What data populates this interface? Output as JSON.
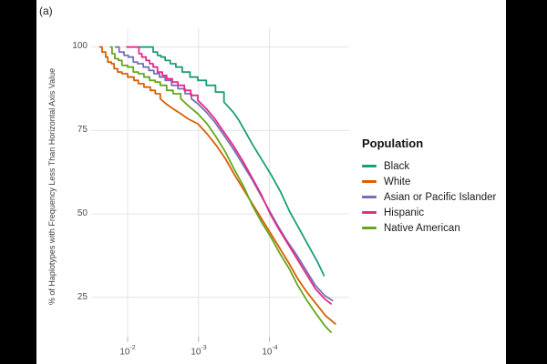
{
  "figure_label": "(a)",
  "colors": {
    "background": "#ffffff",
    "letterbox": "#000000",
    "gridline": "#e4e4e4",
    "tick_mark": "#b5b5b5",
    "axis_text": "#4d4d4d"
  },
  "chart_data": {
    "type": "line",
    "title": "",
    "xlabel": "",
    "ylabel": "% of Haplotypes with Frequency Less Than Horizontal Axis Value",
    "x_scale": "log10 (reversed, frequency decreasing to the right)",
    "x_ticks": [
      {
        "base": "10",
        "exp": "-2",
        "log10": -2
      },
      {
        "base": "10",
        "exp": "-3",
        "log10": -3
      },
      {
        "base": "10",
        "exp": "-4",
        "log10": -4
      }
    ],
    "y_ticks": [
      "100",
      "75",
      "50",
      "25"
    ],
    "y_tick_values": [
      100,
      75,
      50,
      25
    ],
    "xlim_log10": [
      -1.49,
      -5.13
    ],
    "ylim": [
      13,
      105
    ],
    "grid": "major only",
    "legend_position": "right",
    "legend_title": "Population",
    "series": [
      {
        "name": "Black",
        "color": "#1B9E77",
        "points": [
          [
            -2.17,
            100
          ],
          [
            -2.33,
            100
          ],
          [
            -2.36,
            98.5
          ],
          [
            -2.42,
            97.5
          ],
          [
            -2.47,
            97
          ],
          [
            -2.53,
            96
          ],
          [
            -2.6,
            95
          ],
          [
            -2.68,
            94
          ],
          [
            -2.77,
            92.5
          ],
          [
            -2.88,
            91
          ],
          [
            -2.99,
            90
          ],
          [
            -3.11,
            88.5
          ],
          [
            -3.24,
            86.5
          ],
          [
            -3.36,
            83.5
          ],
          [
            -3.49,
            80.5
          ],
          [
            -3.57,
            78
          ],
          [
            -3.65,
            75
          ],
          [
            -3.77,
            70.5
          ],
          [
            -3.9,
            66
          ],
          [
            -4.03,
            61.5
          ],
          [
            -4.16,
            56.5
          ],
          [
            -4.29,
            50.5
          ],
          [
            -4.42,
            45.5
          ],
          [
            -4.55,
            40.5
          ],
          [
            -4.68,
            35.5
          ],
          [
            -4.77,
            31.5
          ]
        ]
      },
      {
        "name": "White",
        "color": "#D95F02",
        "points": [
          [
            -1.61,
            100
          ],
          [
            -1.64,
            98.5
          ],
          [
            -1.69,
            97
          ],
          [
            -1.72,
            95.5
          ],
          [
            -1.77,
            95
          ],
          [
            -1.81,
            93.5
          ],
          [
            -1.86,
            92.5
          ],
          [
            -1.92,
            92
          ],
          [
            -2.0,
            91
          ],
          [
            -2.09,
            90
          ],
          [
            -2.15,
            89
          ],
          [
            -2.23,
            88
          ],
          [
            -2.32,
            87
          ],
          [
            -2.39,
            86
          ],
          [
            -2.46,
            84.5
          ],
          [
            -2.54,
            83
          ],
          [
            -2.64,
            81.5
          ],
          [
            -2.75,
            80
          ],
          [
            -2.85,
            78.5
          ],
          [
            -2.99,
            77
          ],
          [
            -3.12,
            74
          ],
          [
            -3.25,
            70.5
          ],
          [
            -3.38,
            66.5
          ],
          [
            -3.5,
            62
          ],
          [
            -3.63,
            57.5
          ],
          [
            -3.76,
            53
          ],
          [
            -3.89,
            48.5
          ],
          [
            -4.02,
            44
          ],
          [
            -4.15,
            39.5
          ],
          [
            -4.28,
            35
          ],
          [
            -4.4,
            30.5
          ],
          [
            -4.53,
            26.5
          ],
          [
            -4.66,
            23
          ],
          [
            -4.79,
            19.5
          ],
          [
            -4.93,
            17
          ]
        ]
      },
      {
        "name": "Asian or Pacific Islander",
        "color": "#7570B3",
        "points": [
          [
            -1.83,
            100
          ],
          [
            -1.88,
            98.5
          ],
          [
            -1.95,
            97.5
          ],
          [
            -2.01,
            97
          ],
          [
            -2.08,
            95.5
          ],
          [
            -2.14,
            95
          ],
          [
            -2.22,
            94
          ],
          [
            -2.3,
            93
          ],
          [
            -2.37,
            92
          ],
          [
            -2.45,
            91
          ],
          [
            -2.53,
            90
          ],
          [
            -2.62,
            88.5
          ],
          [
            -2.71,
            87.5
          ],
          [
            -2.81,
            86
          ],
          [
            -2.9,
            84.5
          ],
          [
            -2.99,
            83
          ],
          [
            -3.11,
            80.5
          ],
          [
            -3.23,
            77.5
          ],
          [
            -3.36,
            73.5
          ],
          [
            -3.49,
            69.5
          ],
          [
            -3.62,
            65
          ],
          [
            -3.75,
            60.5
          ],
          [
            -3.88,
            55.5
          ],
          [
            -4.01,
            50.5
          ],
          [
            -4.13,
            46
          ],
          [
            -4.26,
            41.5
          ],
          [
            -4.39,
            37.5
          ],
          [
            -4.52,
            33
          ],
          [
            -4.65,
            28.5
          ],
          [
            -4.78,
            25.5
          ],
          [
            -4.89,
            24
          ]
        ]
      },
      {
        "name": "Hispanic",
        "color": "#E7298A",
        "points": [
          [
            -1.99,
            100
          ],
          [
            -2.14,
            100
          ],
          [
            -2.16,
            98
          ],
          [
            -2.2,
            97
          ],
          [
            -2.26,
            96
          ],
          [
            -2.31,
            95
          ],
          [
            -2.36,
            94
          ],
          [
            -2.42,
            92.5
          ],
          [
            -2.49,
            91.5
          ],
          [
            -2.55,
            90.5
          ],
          [
            -2.63,
            89.5
          ],
          [
            -2.71,
            88.5
          ],
          [
            -2.8,
            87
          ],
          [
            -2.89,
            85.5
          ],
          [
            -2.99,
            84
          ],
          [
            -3.11,
            81.5
          ],
          [
            -3.23,
            78.5
          ],
          [
            -3.36,
            74.5
          ],
          [
            -3.49,
            70.5
          ],
          [
            -3.62,
            66
          ],
          [
            -3.75,
            61
          ],
          [
            -3.88,
            56
          ],
          [
            -4.01,
            50
          ],
          [
            -4.13,
            45.5
          ],
          [
            -4.26,
            41
          ],
          [
            -4.39,
            36.5
          ],
          [
            -4.52,
            32
          ],
          [
            -4.65,
            27.5
          ],
          [
            -4.78,
            24.5
          ],
          [
            -4.87,
            23
          ]
        ]
      },
      {
        "name": "Native American",
        "color": "#66A61E",
        "points": [
          [
            -1.76,
            100
          ],
          [
            -1.78,
            98
          ],
          [
            -1.82,
            96.5
          ],
          [
            -1.87,
            96
          ],
          [
            -1.92,
            94.5
          ],
          [
            -2.0,
            94
          ],
          [
            -2.08,
            92.5
          ],
          [
            -2.15,
            92
          ],
          [
            -2.23,
            91
          ],
          [
            -2.31,
            90
          ],
          [
            -2.39,
            89.5
          ],
          [
            -2.46,
            88.5
          ],
          [
            -2.55,
            87
          ],
          [
            -2.64,
            86
          ],
          [
            -2.75,
            84.5
          ],
          [
            -2.85,
            82.5
          ],
          [
            -2.99,
            80
          ],
          [
            -3.12,
            77
          ],
          [
            -3.25,
            73
          ],
          [
            -3.38,
            68.5
          ],
          [
            -3.5,
            63.5
          ],
          [
            -3.63,
            58.5
          ],
          [
            -3.76,
            52.5
          ],
          [
            -3.89,
            47.5
          ],
          [
            -4.02,
            43
          ],
          [
            -4.15,
            38
          ],
          [
            -4.28,
            33.5
          ],
          [
            -4.4,
            28.5
          ],
          [
            -4.53,
            24
          ],
          [
            -4.66,
            20
          ],
          [
            -4.78,
            16.5
          ],
          [
            -4.87,
            14.5
          ]
        ]
      }
    ]
  }
}
